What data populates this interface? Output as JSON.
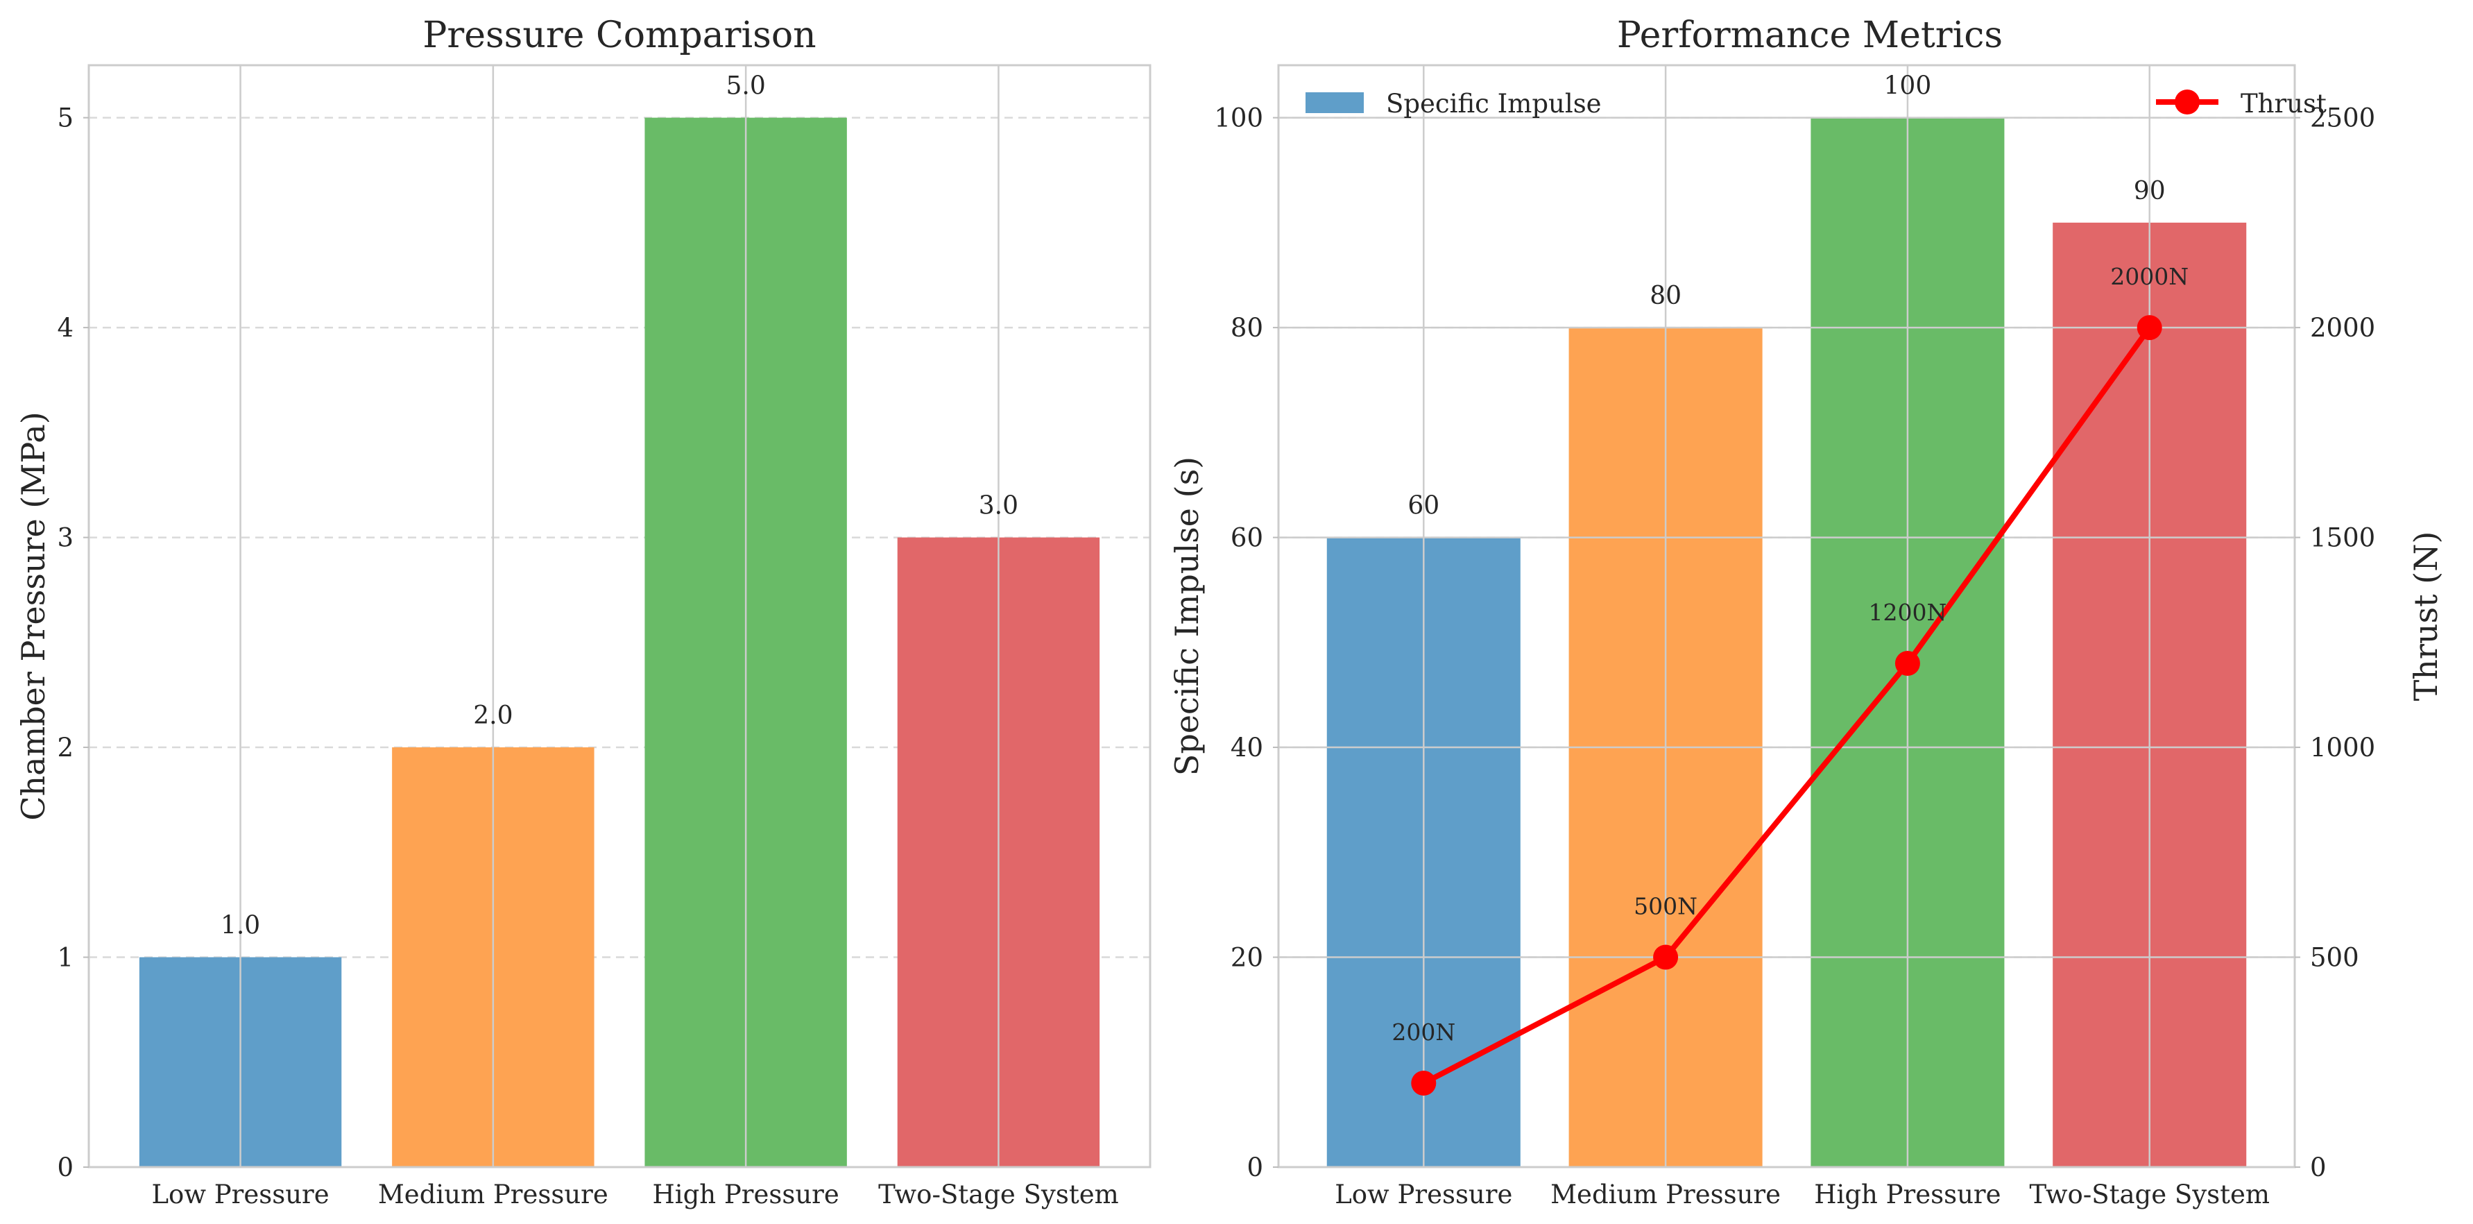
{
  "chart_data": [
    {
      "type": "bar",
      "title": "Pressure Comparison",
      "xlabel": "",
      "ylabel": "Chamber Pressure (MPa)",
      "categories": [
        "Low Pressure",
        "Medium Pressure",
        "High Pressure",
        "Two-Stage System"
      ],
      "values": [
        1.0,
        2.0,
        5.0,
        3.0
      ],
      "value_labels": [
        "1.0",
        "2.0",
        "5.0",
        "3.0"
      ],
      "colors": [
        "#5f9ec9",
        "#fea352",
        "#69bb67",
        "#e16769"
      ],
      "ylim": [
        0,
        5.25
      ],
      "yticks": [
        0,
        1,
        2,
        3,
        4,
        5
      ],
      "grid": "y dashed",
      "legend": "none"
    },
    {
      "type": "bar",
      "title": "Performance Metrics",
      "xlabel": "",
      "ylabel": "Specific Impulse (s)",
      "categories": [
        "Low Pressure",
        "Medium Pressure",
        "High Pressure",
        "Two-Stage System"
      ],
      "colors": [
        "#5f9ec9",
        "#fea352",
        "#69bb67",
        "#e16769"
      ],
      "ylim": [
        0,
        105
      ],
      "yticks": [
        0,
        20,
        40,
        60,
        80,
        100
      ],
      "grid": "y dashed",
      "legend_position": "top",
      "series": [
        {
          "name": "Specific Impulse",
          "type": "bar",
          "axis": "left",
          "values": [
            60,
            80,
            100,
            90
          ],
          "value_labels": [
            "60",
            "80",
            "100",
            "90"
          ],
          "legend_color": "#5f9ec9"
        },
        {
          "name": "Thrust",
          "type": "line",
          "axis": "right",
          "values": [
            200,
            500,
            1200,
            2000
          ],
          "point_labels": [
            "200N",
            "500N",
            "1200N",
            "2000N"
          ],
          "color": "#ff0000"
        }
      ],
      "y2label": "Thrust (N)",
      "y2lim": [
        0,
        2625
      ],
      "y2ticks": [
        0,
        500,
        1000,
        1500,
        2000,
        2500
      ]
    }
  ]
}
